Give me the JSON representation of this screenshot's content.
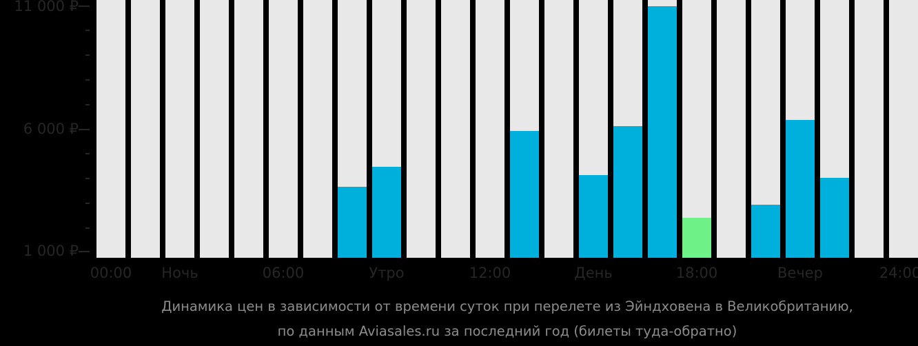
{
  "chart_data": {
    "type": "bar",
    "title": "Динамика цен в зависимости от времени суток при перелете из Эйндховена в Великобританию, по данным Aviasales.ru за последний год (билеты туда-обратно)",
    "xlabel": "",
    "ylabel": "",
    "ylim": [
      1000,
      11000
    ],
    "grid": false,
    "legend": null,
    "y_ticks": [
      "11 000 ₽",
      "6 000 ₽",
      "1 000 ₽"
    ],
    "x_tick_labels": [
      "00:00",
      "Ночь",
      "06:00",
      "Утро",
      "12:00",
      "День",
      "18:00",
      "Вечер",
      "24:00"
    ],
    "categories": [
      "00",
      "01",
      "02",
      "03",
      "04",
      "05",
      "06",
      "07",
      "08",
      "09",
      "10",
      "11",
      "12",
      "13",
      "14",
      "15",
      "16",
      "17",
      "18",
      "19",
      "20",
      "21",
      "22",
      "23"
    ],
    "values": [
      null,
      null,
      null,
      null,
      null,
      null,
      null,
      3620,
      4440,
      null,
      null,
      null,
      5900,
      null,
      4100,
      6100,
      11000,
      2350,
      null,
      2890,
      6350,
      3990,
      null,
      null
    ],
    "highlight": {
      "index": 17,
      "color": "#6ef288",
      "meaning": "cheapest"
    },
    "bar_color": "#00b0dc",
    "empty_color": "#e8e8e8"
  },
  "axis": {
    "y_labels": [
      "11 000 ₽",
      "6 000 ₽",
      "1 000 ₽"
    ],
    "x_labels": [
      "00:00",
      "Ночь",
      "06:00",
      "Утро",
      "12:00",
      "День",
      "18:00",
      "Вечер",
      "24:00"
    ]
  },
  "caption": {
    "line1": "Динамика цен в зависимости от времени суток при перелете из Эйндховена в Великобританию,",
    "line2": "по данным Aviasales.ru за последний год (билеты туда-обратно)"
  }
}
